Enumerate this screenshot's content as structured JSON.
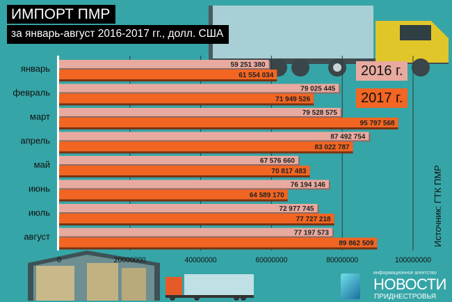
{
  "title": "ИМПОРТ ПМР",
  "subtitle": "за январь-август 2016-2017 гг., долл. США",
  "source": "Источник: ГТК ПМР",
  "logo": {
    "small": "информационное агентство",
    "big": "НОВОСТИ",
    "sub": "ПРИДНЕСТРОВЬЯ"
  },
  "colors": {
    "background": "#36a5a7",
    "series_2016": "#e8aa9f",
    "series_2017": "#f26522"
  },
  "chart_data": {
    "type": "bar",
    "orientation": "horizontal",
    "categories": [
      "январь",
      "февраль",
      "март",
      "апрель",
      "май",
      "июнь",
      "июль",
      "август"
    ],
    "series": [
      {
        "name": "2016 г.",
        "values": [
          59251380,
          79025445,
          79528575,
          87492754,
          67576660,
          76194146,
          72977745,
          77197573
        ],
        "labels": [
          "59 251 380",
          "79 025 445",
          "79 528 575",
          "87 492 754",
          "67 576 660",
          "76 194 146",
          "72 977 745",
          "77 197 573"
        ]
      },
      {
        "name": "2017 г.",
        "values": [
          61554034,
          71949526,
          95797568,
          83022787,
          70817483,
          64589170,
          77727218,
          89862509
        ],
        "labels": [
          "61 554 034",
          "71 949 526",
          "95 797 568",
          "83 022 787",
          "70 817 483",
          "64 589 170",
          "77 727 218",
          "89 862 509"
        ]
      }
    ],
    "xlim": [
      0,
      100000000
    ],
    "xticks": [
      0,
      20000000,
      40000000,
      60000000,
      80000000,
      100000000
    ],
    "xtick_labels": [
      "0",
      "20000000",
      "40000000",
      "60000000",
      "80000000",
      "100000000"
    ],
    "grid": true,
    "legend": "right"
  }
}
